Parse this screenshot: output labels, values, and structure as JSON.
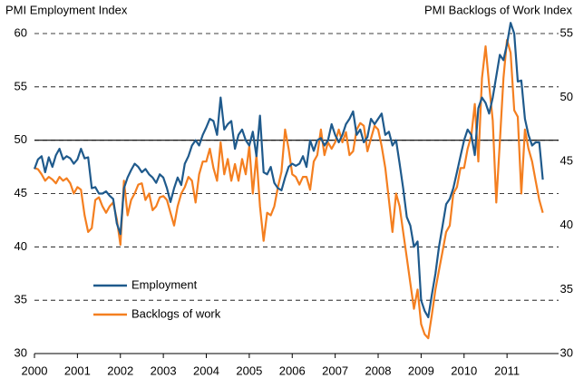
{
  "chart_data": {
    "type": "line",
    "title_left": "PMI Employment Index",
    "title_right": "PMI Backlogs of Work Index",
    "x": [
      2000,
      2000.083,
      2000.167,
      2000.25,
      2000.333,
      2000.417,
      2000.5,
      2000.583,
      2000.667,
      2000.75,
      2000.833,
      2000.917,
      2001,
      2001.083,
      2001.167,
      2001.25,
      2001.333,
      2001.417,
      2001.5,
      2001.583,
      2001.667,
      2001.75,
      2001.833,
      2001.917,
      2002,
      2002.083,
      2002.167,
      2002.25,
      2002.333,
      2002.417,
      2002.5,
      2002.583,
      2002.667,
      2002.75,
      2002.833,
      2002.917,
      2003,
      2003.083,
      2003.167,
      2003.25,
      2003.333,
      2003.417,
      2003.5,
      2003.583,
      2003.667,
      2003.75,
      2003.833,
      2003.917,
      2004,
      2004.083,
      2004.167,
      2004.25,
      2004.333,
      2004.417,
      2004.5,
      2004.583,
      2004.667,
      2004.75,
      2004.833,
      2004.917,
      2005,
      2005.083,
      2005.167,
      2005.25,
      2005.333,
      2005.417,
      2005.5,
      2005.583,
      2005.667,
      2005.75,
      2005.833,
      2005.917,
      2006,
      2006.083,
      2006.167,
      2006.25,
      2006.333,
      2006.417,
      2006.5,
      2006.583,
      2006.667,
      2006.75,
      2006.833,
      2006.917,
      2007,
      2007.083,
      2007.167,
      2007.25,
      2007.333,
      2007.417,
      2007.5,
      2007.583,
      2007.667,
      2007.75,
      2007.833,
      2007.917,
      2008,
      2008.083,
      2008.167,
      2008.25,
      2008.333,
      2008.417,
      2008.5,
      2008.583,
      2008.667,
      2008.75,
      2008.833,
      2008.917,
      2009,
      2009.083,
      2009.167,
      2009.25,
      2009.333,
      2009.417,
      2009.5,
      2009.583,
      2009.667,
      2009.75,
      2009.833,
      2009.917,
      2010,
      2010.083,
      2010.167,
      2010.25,
      2010.333,
      2010.417,
      2010.5,
      2010.583,
      2010.667,
      2010.75,
      2010.833,
      2010.917,
      2011,
      2011.083,
      2011.167,
      2011.25,
      2011.333,
      2011.417,
      2011.5,
      2011.583,
      2011.667,
      2011.75,
      2011.833
    ],
    "series": [
      {
        "name": "Employment",
        "color": "#1f5a8c",
        "axis": "y",
        "values": [
          47.3,
          48.2,
          48.5,
          47,
          48.4,
          47.5,
          48.6,
          49.2,
          48.2,
          48.5,
          48.3,
          47.8,
          48.2,
          49.2,
          48.3,
          48.4,
          45.5,
          45.6,
          45,
          45,
          45.2,
          44.8,
          44.5,
          42.2,
          41.2,
          45.5,
          46.5,
          47.2,
          47.8,
          47.5,
          47,
          47.3,
          46.8,
          46.5,
          46,
          46.8,
          46.5,
          45.5,
          44.2,
          45.5,
          46.5,
          45.8,
          47.8,
          48.5,
          49.5,
          50,
          49.5,
          50.5,
          51.2,
          52,
          51.8,
          50.5,
          54,
          51,
          51.5,
          51.8,
          49.2,
          50.5,
          51,
          50,
          49.5,
          50.8,
          48.5,
          52.3,
          47,
          46.8,
          47.5,
          46,
          45.5,
          45.3,
          46.5,
          47.5,
          47.8,
          47.6,
          47.8,
          48.5,
          47.5,
          50,
          49,
          50,
          50.2,
          49.5,
          50,
          51.5,
          50.5,
          49.8,
          50.5,
          51.5,
          52,
          52.7,
          50.5,
          51,
          49.8,
          50.3,
          52,
          51.5,
          52,
          52.5,
          50.5,
          50.8,
          49.5,
          50,
          47.8,
          45.5,
          42.8,
          42,
          40,
          40.5,
          35,
          34,
          33.4,
          35.5,
          37.5,
          40,
          42,
          44,
          44.5,
          45.5,
          47,
          48.5,
          50,
          51,
          50.5,
          48.6,
          53,
          54,
          53.5,
          52.5,
          54,
          56,
          58,
          57.5,
          59,
          61,
          60,
          55.5,
          55.6,
          52,
          50.5,
          49.5,
          49.8,
          49.8,
          46.3
        ]
      },
      {
        "name": "Backlogs of work",
        "color": "#f47f20",
        "axis": "y2",
        "values": [
          44.5,
          44.4,
          44,
          43.5,
          43.8,
          43.6,
          43.3,
          43.8,
          43.5,
          43.7,
          43.3,
          42.5,
          43,
          42.8,
          40.8,
          39.5,
          39.8,
          42,
          42.2,
          41.5,
          41,
          41.5,
          41.8,
          40.5,
          38.5,
          43.5,
          40.8,
          42,
          42.5,
          43.2,
          43.3,
          42,
          42.5,
          41.2,
          41.5,
          42.2,
          42.3,
          42,
          41,
          40,
          41.5,
          42.5,
          43,
          43.8,
          43.5,
          41.8,
          44,
          45,
          45,
          46,
          44.5,
          43.5,
          46.5,
          44,
          45.2,
          43.5,
          44.8,
          43.5,
          45.2,
          44,
          46.2,
          42.5,
          45.5,
          41.5,
          38.8,
          41,
          40.8,
          41.5,
          43,
          44.2,
          47.5,
          46,
          44,
          43.8,
          43.2,
          43.8,
          43.8,
          42.8,
          45,
          45.5,
          47.5,
          45.5,
          46.5,
          46,
          46.5,
          47.5,
          46.5,
          47.3,
          45.5,
          45.8,
          47.5,
          48,
          47.8,
          45.8,
          46.8,
          47.8,
          47.5,
          46.2,
          44.5,
          42,
          39.5,
          42.5,
          41.5,
          39.5,
          37.5,
          35.5,
          33.5,
          35,
          32.3,
          31.5,
          31.2,
          33,
          35,
          36.5,
          38,
          39.5,
          40,
          42.5,
          43,
          44.5,
          44.5,
          46,
          47,
          49.5,
          45,
          51.5,
          54,
          51,
          48.2,
          41.8,
          46.5,
          51.5,
          54.5,
          53.5,
          49,
          48.5,
          42.5,
          47.5,
          46,
          45,
          43.5,
          42,
          41
        ]
      }
    ],
    "xlim": [
      2000,
      2012.2
    ],
    "xticks": [
      2000,
      2001,
      2002,
      2003,
      2004,
      2005,
      2006,
      2007,
      2008,
      2009,
      2010,
      2011
    ],
    "ylim": [
      30,
      60
    ],
    "yticks": [
      30,
      35,
      40,
      45,
      50,
      55,
      60
    ],
    "y2lim": [
      30,
      55
    ],
    "y2ticks": [
      30,
      35,
      40,
      45,
      50,
      55
    ],
    "reference_line": 50,
    "grid": true
  }
}
